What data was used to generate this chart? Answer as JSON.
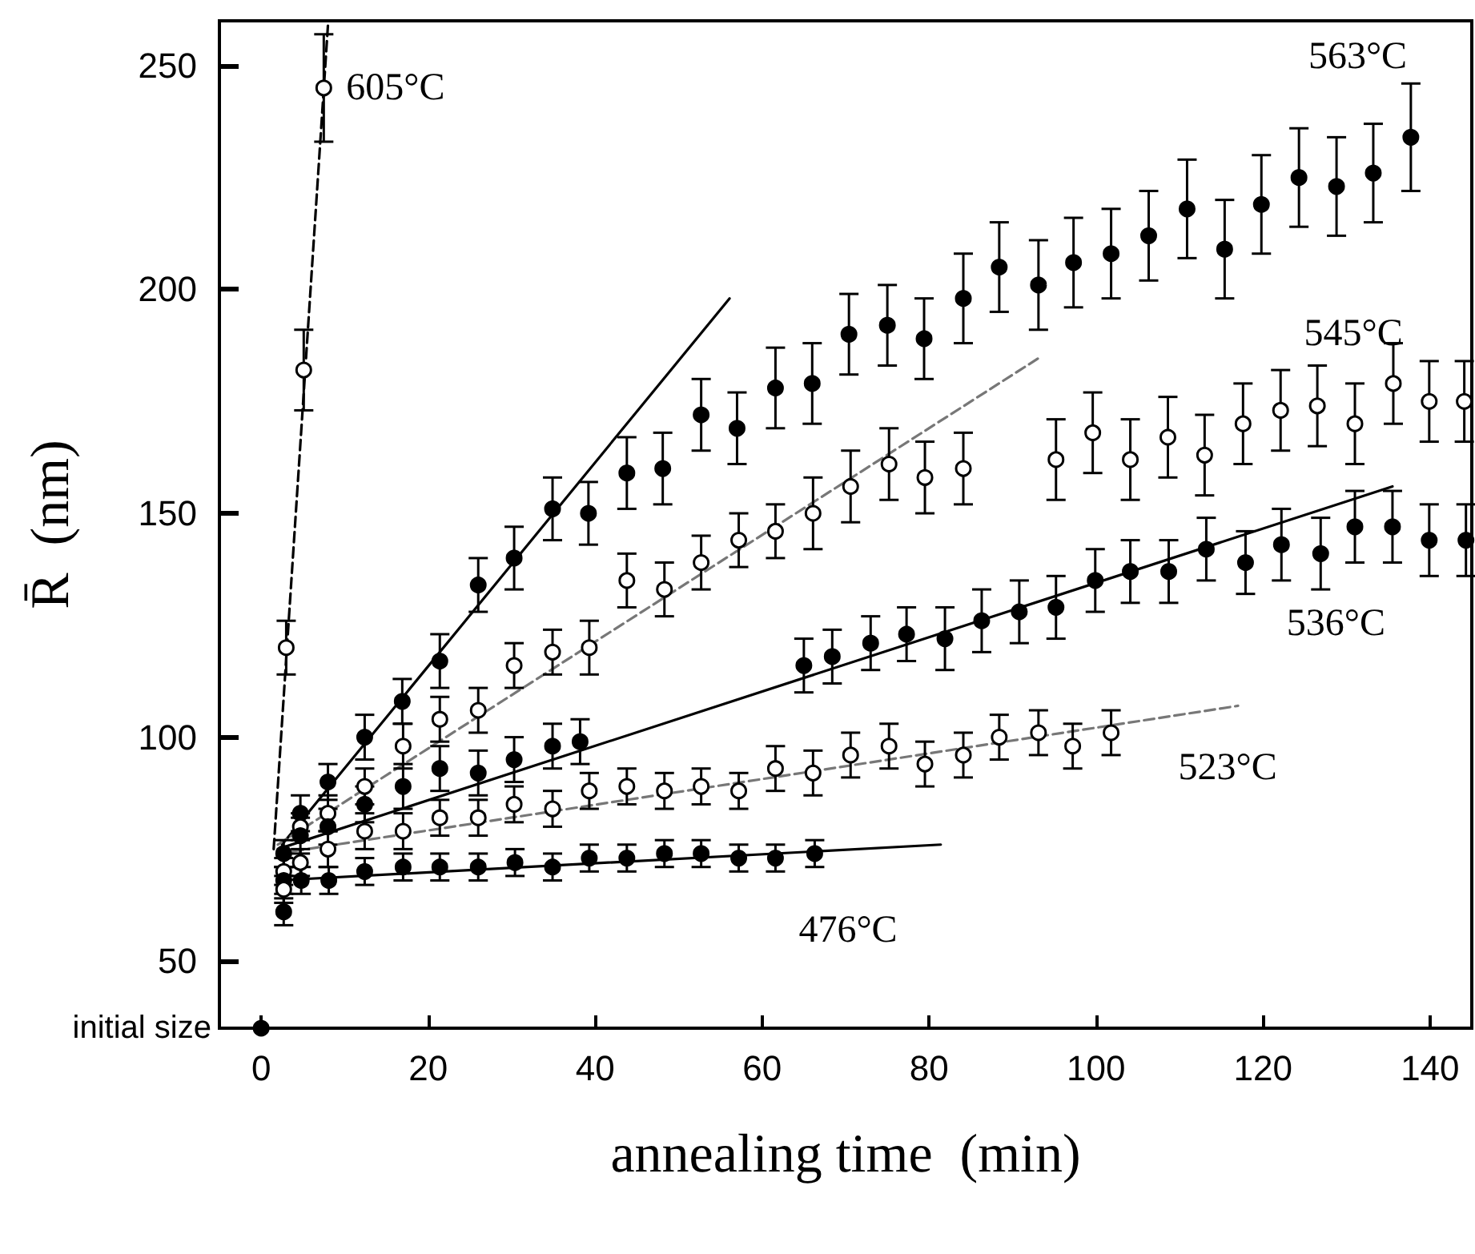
{
  "chart_data": {
    "type": "scatter",
    "xlabel": "annealing time  (min)",
    "ylabel": "R̄  (nm)",
    "xlim": [
      -5,
      145
    ],
    "ylim": [
      35,
      260
    ],
    "xticks": [
      0,
      20,
      40,
      60,
      80,
      100,
      120,
      140
    ],
    "yticks": [
      50,
      100,
      150,
      200,
      250
    ],
    "grid": false,
    "marker": "circle",
    "series": [
      {
        "color": "#000000",
        "x": [
          0
        ],
        "values": [
          35
        ]
      },
      {
        "type": "line",
        "marker": "none",
        "line_style": "dashed",
        "color": "#000000",
        "x": [
          1.5,
          8.0
        ],
        "values": [
          75,
          259
        ]
      },
      {
        "type": "line",
        "marker": "none",
        "line_style": "solid",
        "color": "#000000",
        "x": [
          2.5,
          56.1
        ],
        "values": [
          76,
          198
        ]
      },
      {
        "type": "line",
        "marker": "none",
        "line_style": "dashed",
        "color": "#777777",
        "x": [
          2,
          93.4
        ],
        "values": [
          76,
          185
        ]
      },
      {
        "type": "line",
        "marker": "none",
        "line_style": "solid",
        "color": "#000000",
        "x": [
          2,
          135.5
        ],
        "values": [
          75,
          156
        ]
      },
      {
        "type": "line",
        "marker": "none",
        "line_style": "dashed",
        "color": "#777777",
        "x": [
          2,
          117
        ],
        "values": [
          74,
          107
        ]
      },
      {
        "type": "line",
        "marker": "none",
        "line_style": "solid",
        "color": "#000000",
        "x": [
          2,
          81.4
        ],
        "values": [
          68,
          76
        ]
      },
      {
        "name": "605°C",
        "color": "#ffffff",
        "x": [
          3.0,
          5.1,
          7.5
        ],
        "values": [
          120,
          182,
          245
        ],
        "errors": [
          6,
          9,
          12
        ]
      },
      {
        "name": "563°C",
        "color": "#000000",
        "x": [
          2.7,
          4.7,
          8.0,
          12.4,
          16.9,
          21.4,
          26.0,
          30.3,
          34.9,
          39.2,
          43.8,
          48.1,
          52.7,
          57.0,
          61.6,
          66.0,
          70.4,
          75.0,
          79.4,
          84.1,
          88.4,
          93.1,
          97.3,
          101.8,
          106.3,
          110.9,
          115.4,
          119.8,
          124.3,
          128.8,
          133.2,
          137.7
        ],
        "values": [
          74,
          83,
          90,
          100,
          108,
          117,
          134,
          140,
          151,
          150,
          159,
          160,
          172,
          169,
          178,
          179,
          190,
          192,
          189,
          198,
          205,
          201,
          206,
          208,
          212,
          218,
          209,
          219,
          225,
          223,
          226,
          234
        ],
        "errors": [
          3,
          4,
          4,
          5,
          5,
          6,
          6,
          7,
          7,
          7,
          8,
          8,
          8,
          8,
          9,
          9,
          9,
          9,
          9,
          10,
          10,
          10,
          10,
          10,
          10,
          11,
          11,
          11,
          11,
          11,
          11,
          12
        ]
      },
      {
        "name": "545°C",
        "color": "#ffffff",
        "x": [
          2.7,
          4.7,
          8.0,
          12.4,
          17.0,
          21.4,
          26.0,
          30.3,
          34.9,
          39.3,
          43.8,
          48.3,
          52.7,
          57.2,
          61.6,
          66.1,
          70.6,
          75.2,
          79.5,
          84.1,
          95.2,
          99.6,
          104.1,
          108.6,
          113.0,
          117.6,
          122.1,
          126.5,
          131.0,
          135.6,
          139.9,
          144.1
        ],
        "values": [
          70,
          80,
          83,
          89,
          98,
          104,
          106,
          116,
          119,
          120,
          135,
          133,
          139,
          144,
          146,
          150,
          156,
          161,
          158,
          160,
          162,
          168,
          162,
          167,
          163,
          170,
          173,
          174,
          170,
          179,
          175,
          175
        ],
        "errors": [
          3,
          3,
          4,
          4,
          5,
          5,
          5,
          5,
          5,
          6,
          6,
          6,
          6,
          6,
          6,
          8,
          8,
          8,
          8,
          8,
          9,
          9,
          9,
          9,
          9,
          9,
          9,
          9,
          9,
          9,
          9,
          9
        ]
      },
      {
        "name": "536°C",
        "color": "#000000",
        "x": [
          2.7,
          4.7,
          8.0,
          12.4,
          17.0,
          21.4,
          26.0,
          30.3,
          34.9,
          38.2,
          65.0,
          68.4,
          73.0,
          77.3,
          81.9,
          86.3,
          90.8,
          95.2,
          99.9,
          104.1,
          108.7,
          113.2,
          117.9,
          122.2,
          126.9,
          131.0,
          135.5,
          139.9,
          144.3
        ],
        "values": [
          68,
          78,
          80,
          85,
          89,
          93,
          92,
          95,
          98,
          99,
          116,
          118,
          121,
          123,
          122,
          126,
          128,
          129,
          135,
          137,
          137,
          142,
          139,
          143,
          141,
          147,
          147,
          144,
          144
        ],
        "errors": [
          3,
          4,
          4,
          4,
          5,
          5,
          5,
          5,
          5,
          5,
          6,
          6,
          6,
          6,
          7,
          7,
          7,
          7,
          7,
          7,
          7,
          7,
          7,
          8,
          8,
          8,
          8,
          8,
          8
        ]
      },
      {
        "name": "523°C",
        "color": "#ffffff",
        "x": [
          2.7,
          4.7,
          8.0,
          12.4,
          17.0,
          21.4,
          26.0,
          30.3,
          34.9,
          39.3,
          43.8,
          48.3,
          52.7,
          57.2,
          61.6,
          66.1,
          70.6,
          75.2,
          79.5,
          84.1,
          88.4,
          93.1,
          97.2,
          101.8
        ],
        "values": [
          66,
          72,
          75,
          79,
          79,
          82,
          82,
          85,
          84,
          88,
          89,
          88,
          89,
          88,
          93,
          92,
          96,
          98,
          94,
          96,
          100,
          101,
          98,
          101
        ],
        "errors": [
          3,
          3,
          4,
          4,
          4,
          4,
          4,
          4,
          4,
          4,
          4,
          4,
          4,
          4,
          5,
          5,
          5,
          5,
          5,
          5,
          5,
          5,
          5,
          5
        ]
      },
      {
        "name": "476°C",
        "color": "#000000",
        "x": [
          2.7,
          4.8,
          8.1,
          12.4,
          17.0,
          21.4,
          26.0,
          30.4,
          34.9,
          39.3,
          43.8,
          48.3,
          52.7,
          57.2,
          61.6,
          66.3
        ],
        "values": [
          61,
          68,
          68,
          70,
          71,
          71,
          71,
          72,
          71,
          73,
          73,
          74,
          74,
          73,
          73,
          74
        ],
        "errors": [
          3,
          3,
          3,
          3,
          3,
          3,
          3,
          3,
          3,
          3,
          3,
          3,
          3,
          3,
          3,
          3
        ]
      }
    ],
    "annotations": [
      "initial size"
    ]
  }
}
